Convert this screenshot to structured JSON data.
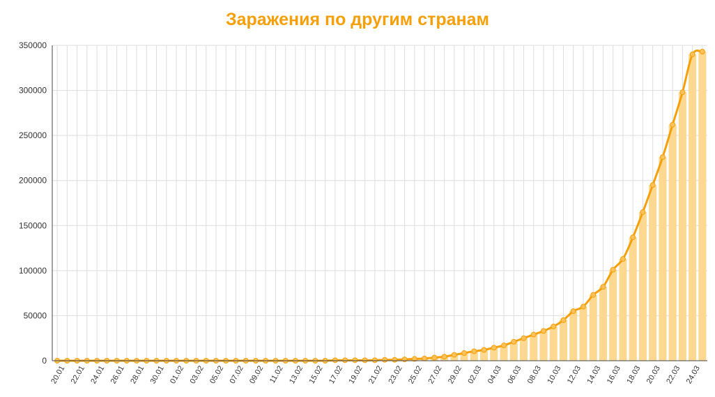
{
  "chart_data": {
    "type": "bar",
    "title": "Заражения по другим странам",
    "xlabel": "",
    "ylabel": "",
    "ylim": [
      0,
      350000
    ],
    "yticks": [
      0,
      50000,
      100000,
      150000,
      200000,
      250000,
      300000,
      350000
    ],
    "grid": true,
    "legend": "none",
    "colors": {
      "title": "#f5a00a",
      "bar": "#fcd890",
      "line": "#f5a00a",
      "grid": "#dddddd"
    },
    "categories": [
      "20.01",
      "21.01",
      "22.01",
      "23.01",
      "24.01",
      "25.01",
      "26.01",
      "27.01",
      "28.01",
      "29.01",
      "30.01",
      "31.01",
      "01.02",
      "02.02",
      "03.02",
      "04.02",
      "05.02",
      "06.02",
      "07.02",
      "08.02",
      "09.02",
      "10.02",
      "11.02",
      "12.02",
      "13.02",
      "14.02",
      "15.02",
      "16.02",
      "17.02",
      "18.02",
      "19.02",
      "20.02",
      "21.02",
      "22.02",
      "23.02",
      "24.02",
      "25.02",
      "26.02",
      "27.02",
      "28.02",
      "29.02",
      "01.03",
      "02.03",
      "03.03",
      "04.03",
      "05.03",
      "06.03",
      "07.03",
      "08.03",
      "09.03",
      "10.03",
      "11.03",
      "12.03",
      "13.03",
      "14.03",
      "15.03",
      "16.03",
      "17.03",
      "18.03",
      "19.03",
      "20.03",
      "21.03",
      "22.03",
      "23.03",
      "24.03",
      "25.03"
    ],
    "x_tick_labels": [
      "20.01",
      "22.01",
      "24.01",
      "26.01",
      "28.01",
      "30.01",
      "01.02",
      "03.02",
      "05.02",
      "07.02",
      "09.02",
      "11.02",
      "13.02",
      "15.02",
      "17.02",
      "19.02",
      "21.02",
      "23.02",
      "25.02",
      "27.02",
      "29.02",
      "02.03",
      "04.03",
      "06.03",
      "08.03",
      "10.03",
      "12.03",
      "14.03",
      "16.03",
      "18.03",
      "20.03",
      "22.03",
      "24.03"
    ],
    "series": [
      {
        "values": [
          0,
          0,
          0,
          0,
          0,
          0,
          0,
          0,
          0,
          0,
          0,
          0,
          0,
          0,
          0,
          0,
          0,
          0,
          0,
          0,
          0,
          0,
          0,
          0,
          0,
          0,
          0,
          0,
          500,
          500,
          500,
          500,
          500,
          1000,
          1000,
          1500,
          2000,
          2500,
          3500,
          4500,
          6500,
          8500,
          10500,
          12000,
          14500,
          17000,
          21000,
          25000,
          29000,
          33000,
          38000,
          45000,
          55000,
          60000,
          73000,
          82000,
          101000,
          113000,
          137000,
          165000,
          195000,
          226000,
          262000,
          298000,
          340000,
          343000
        ]
      }
    ]
  }
}
